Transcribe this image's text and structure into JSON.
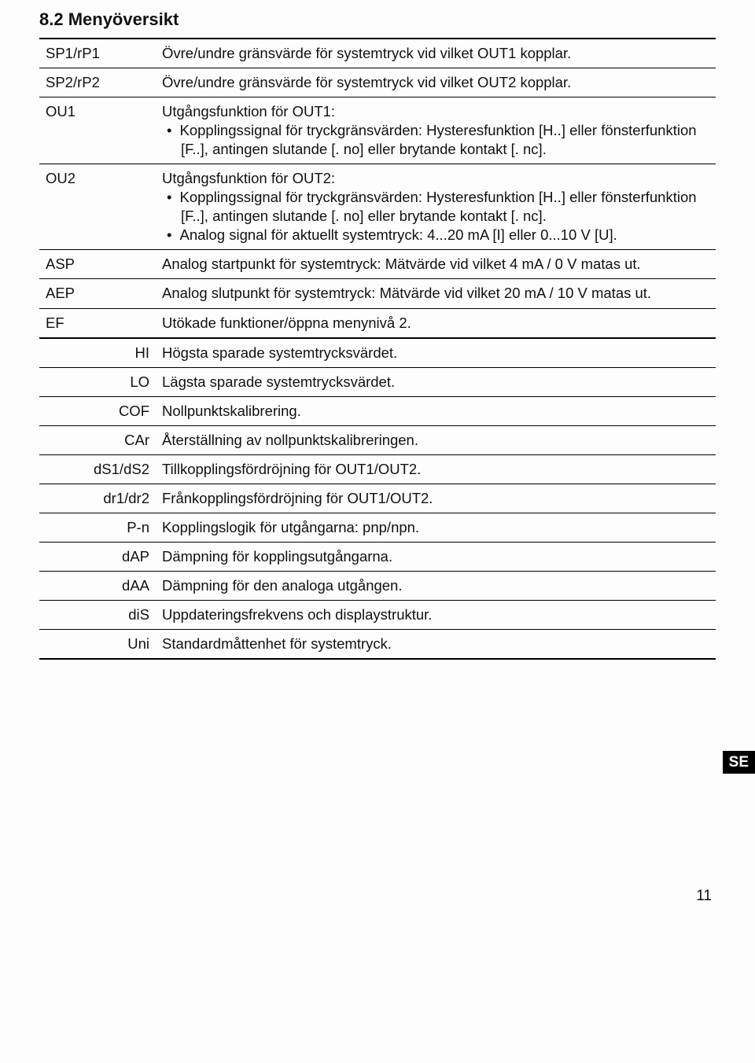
{
  "heading": "8.2 Menyöversikt",
  "side_tab": "SE",
  "page_number": "11",
  "rows": [
    {
      "label": "SP1/rP1",
      "align": "left",
      "top": "thick",
      "bottom": "thin",
      "desc": "Övre/undre gränsvärde för systemtryck vid vilket OUT1 kopplar."
    },
    {
      "label": "SP2/rP2",
      "align": "left",
      "top": "none",
      "bottom": "thin",
      "desc": "Övre/undre gränsvärde för systemtryck vid vilket OUT2 kopplar."
    },
    {
      "label": "OU1",
      "align": "left",
      "top": "none",
      "bottom": "thin",
      "desc": "Utgångsfunktion för OUT1:",
      "bullets": [
        "Kopplingssignal för tryckgränsvärden: Hysteresfunktion [H..] eller fönsterfunktion [F..], antingen slutande [. no] eller brytande kontakt [. nc]."
      ]
    },
    {
      "label": "OU2",
      "align": "left",
      "top": "none",
      "bottom": "thin",
      "desc": "Utgångsfunktion för OUT2:",
      "bullets": [
        "Kopplingssignal för tryckgränsvärden: Hysteresfunktion [H..] eller fönsterfunktion [F..], antingen slutande [. no] eller brytande kontakt [. nc].",
        "Analog signal för aktuellt systemtryck: 4...20 mA [I] eller 0...10 V [U]."
      ]
    },
    {
      "label": "ASP",
      "align": "left",
      "top": "none",
      "bottom": "thin",
      "desc": "Analog startpunkt för systemtryck: Mätvärde vid vilket 4 mA / 0 V matas ut."
    },
    {
      "label": "AEP",
      "align": "left",
      "top": "none",
      "bottom": "thin",
      "desc": "Analog slutpunkt för systemtryck: Mätvärde vid vilket 20 mA / 10 V matas ut."
    },
    {
      "label": "EF",
      "align": "left",
      "top": "none",
      "bottom": "thick",
      "desc": "Utökade funktioner/öppna menynivå 2."
    },
    {
      "label": "HI",
      "align": "right",
      "top": "none",
      "bottom": "thin",
      "desc": "Högsta sparade systemtrycksvärdet."
    },
    {
      "label": "LO",
      "align": "right",
      "top": "none",
      "bottom": "thin",
      "desc": "Lägsta sparade systemtrycksvärdet."
    },
    {
      "label": "COF",
      "align": "right",
      "top": "none",
      "bottom": "thin",
      "desc": "Nollpunktskalibrering."
    },
    {
      "label": "CAr",
      "align": "right",
      "top": "none",
      "bottom": "thin",
      "desc": "Återställning av nollpunktskalibreringen."
    },
    {
      "label": "dS1/dS2",
      "align": "right",
      "top": "none",
      "bottom": "thin",
      "desc": "Tillkopplingsfördröjning för OUT1/OUT2."
    },
    {
      "label": "dr1/dr2",
      "align": "right",
      "top": "none",
      "bottom": "thin",
      "desc": "Frånkopplingsfördröjning för OUT1/OUT2."
    },
    {
      "label": "P-n",
      "align": "right",
      "top": "none",
      "bottom": "thin",
      "desc": "Kopplingslogik för utgångarna: pnp/npn."
    },
    {
      "label": "dAP",
      "align": "right",
      "top": "none",
      "bottom": "thin",
      "desc": "Dämpning för kopplingsutgångarna."
    },
    {
      "label": "dAA",
      "align": "right",
      "top": "none",
      "bottom": "thin",
      "desc": "Dämpning för den analoga utgången."
    },
    {
      "label": "diS",
      "align": "right",
      "top": "none",
      "bottom": "thin",
      "desc": "Uppdateringsfrekvens och displaystruktur."
    },
    {
      "label": "Uni",
      "align": "right",
      "top": "none",
      "bottom": "thick",
      "desc": "Standardmåttenhet för systemtryck."
    }
  ]
}
